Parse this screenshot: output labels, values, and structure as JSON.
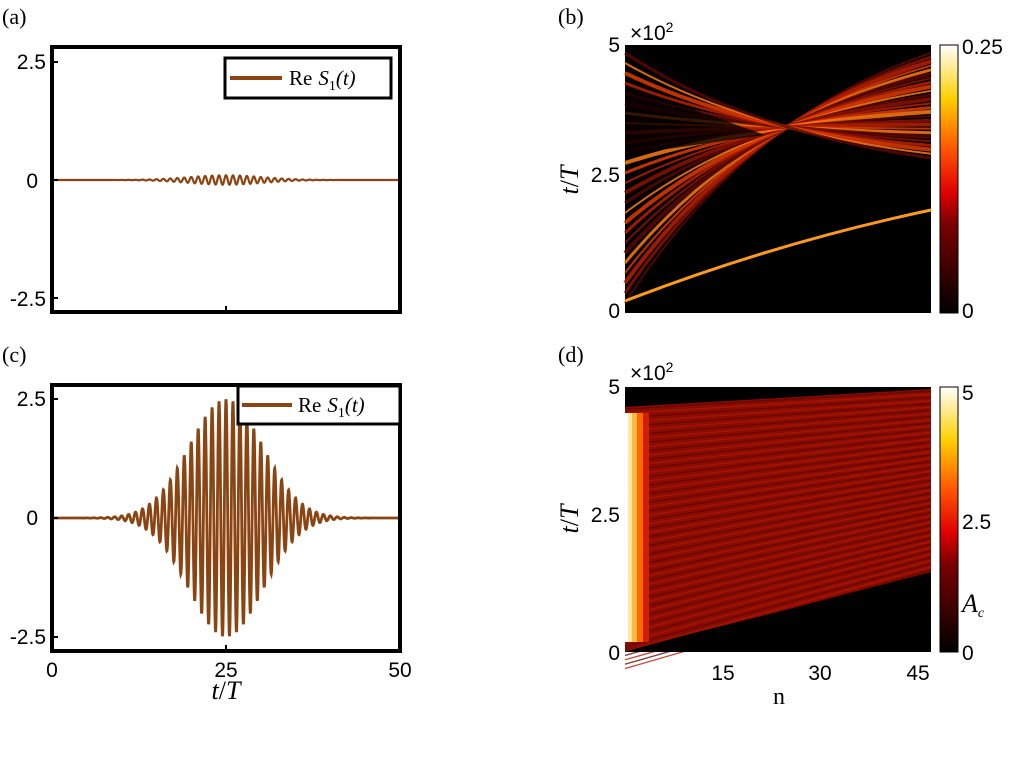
{
  "chart_data": [
    {
      "panel": "(a)",
      "type": "line",
      "xlim": [
        0,
        50
      ],
      "ylim": [
        -2.8,
        2.8
      ],
      "yticks": [
        "2.5",
        "0",
        "-2.5"
      ],
      "legend": "Re S₁(t)",
      "legend_position": "top-right",
      "series": [
        {
          "color": "#8B4513",
          "peak_amplitude": 0.1,
          "center": 25,
          "width": 7.5,
          "cycles_per_unit": 1
        }
      ]
    },
    {
      "panel": "(b)",
      "type": "heatmap",
      "xlim": [
        0,
        47
      ],
      "ylim": [
        0,
        500
      ],
      "ytick_labels": [
        "0",
        "2.5",
        "5"
      ],
      "ylabel": "t/T",
      "y_multiplier": "×10²",
      "colorbar_range": [
        0,
        0.25
      ],
      "colorbar_ticks": [
        "0",
        "0.25"
      ],
      "colormap": "hot"
    },
    {
      "panel": "(c)",
      "type": "line",
      "xlim": [
        0,
        50
      ],
      "ylim": [
        -2.8,
        2.8
      ],
      "xtick_labels": [
        "0",
        "25",
        "50"
      ],
      "yticks": [
        "2.5",
        "0",
        "-2.5"
      ],
      "xlabel": "t/T",
      "legend": "Re S₁(t)",
      "legend_position": "top-right",
      "series": [
        {
          "color": "#8B4513",
          "peak_amplitude": 2.5,
          "center": 25,
          "width": 7.5,
          "cycles_per_unit": 1
        }
      ]
    },
    {
      "panel": "(d)",
      "type": "heatmap",
      "xlim": [
        0,
        47
      ],
      "ylim": [
        0,
        500
      ],
      "xtick_labels": [
        "15",
        "30",
        "45"
      ],
      "ytick_labels": [
        "0",
        "2.5",
        "5"
      ],
      "xlabel": "n",
      "ylabel": "t/T",
      "y_multiplier": "×10²",
      "colorbar_range": [
        0,
        5
      ],
      "colorbar_ticks": [
        "0",
        "2.5",
        "5"
      ],
      "colorbar_label": "A_c",
      "colormap": "hot"
    }
  ],
  "labels": {
    "a": "(a)",
    "b": "(b)",
    "c": "(c)",
    "d": "(d)",
    "mult": "×10",
    "mult_exp": "2",
    "legend_re": "Re",
    "legend_s": "S",
    "legend_sub": "1",
    "legend_t": "(t)",
    "a_y1": "2.5",
    "a_y0": "0",
    "a_y2": "-2.5",
    "c_y1": "2.5",
    "c_y0": "0",
    "c_y2": "-2.5",
    "c_x0": "0",
    "c_x1": "25",
    "c_x2": "50",
    "tT_t": "t",
    "tT_slash": "/",
    "tT_T": "T",
    "b_y0": "0",
    "b_y1": "2.5",
    "b_y2": "5",
    "d_y0": "0",
    "d_y1": "2.5",
    "d_y2": "5",
    "d_x1": "15",
    "d_x2": "30",
    "d_x3": "45",
    "n": "n",
    "cb_b_top": "0.25",
    "cb_b_bot": "0",
    "cb_d_top": "5",
    "cb_d_mid": "2.5",
    "cb_d_bot": "0",
    "ac_a": "A",
    "ac_c": "c"
  }
}
